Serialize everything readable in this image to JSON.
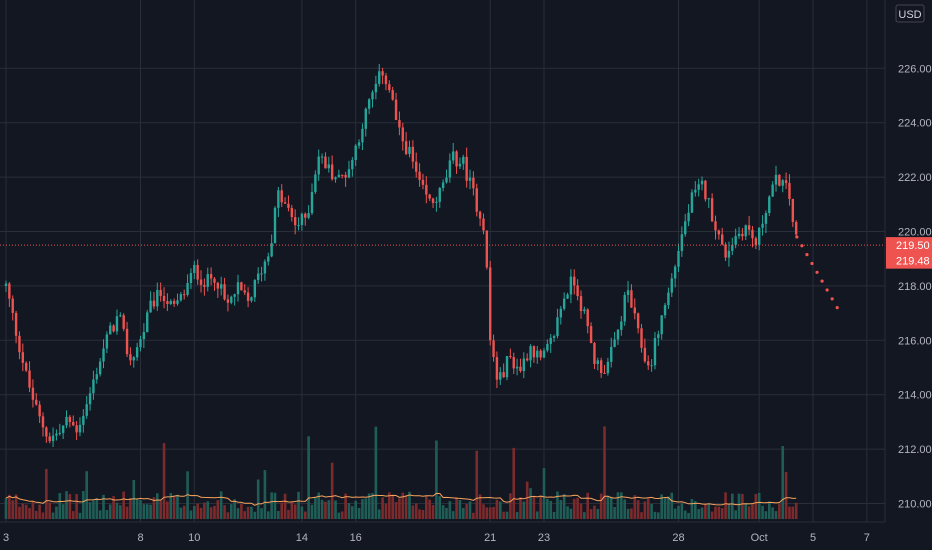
{
  "chart_data": {
    "type": "candlestick",
    "currency": "USD",
    "colors": {
      "background": "#131722",
      "grid": "#2a2e39",
      "up": "#26a69a",
      "down": "#ef5350",
      "volume_up": "#1f5e57",
      "volume_down": "#7d2a2c",
      "volume_ma": "#f7a35c",
      "axis_text": "#b2b5be",
      "last_price_line": "#ef5350"
    },
    "ylim": [
      209.0,
      228.0
    ],
    "y_ticks": [
      "210.00",
      "212.00",
      "214.00",
      "216.00",
      "218.00",
      "220.00",
      "222.00",
      "224.00",
      "226.00"
    ],
    "x_ticks": [
      {
        "label": "3",
        "day": 3
      },
      {
        "label": "8",
        "day": 8
      },
      {
        "label": "10",
        "day": 10
      },
      {
        "label": "14",
        "day": 14
      },
      {
        "label": "16",
        "day": 16
      },
      {
        "label": "21",
        "day": 21
      },
      {
        "label": "23",
        "day": 23
      },
      {
        "label": "28",
        "day": 28
      },
      {
        "label": "Oct",
        "day": 31
      },
      {
        "label": "5",
        "day": 33
      },
      {
        "label": "7",
        "day": 35
      }
    ],
    "price_labels": [
      {
        "text": "219.50",
        "value": 219.5
      },
      {
        "text": "219.48",
        "value": 219.48
      }
    ],
    "last_price": 219.5,
    "price_path": [
      {
        "t": 3.0,
        "p": 218.0
      },
      {
        "t": 3.4,
        "p": 216.2
      },
      {
        "t": 3.8,
        "p": 214.5
      },
      {
        "t": 4.2,
        "p": 213.2
      },
      {
        "t": 4.6,
        "p": 212.4
      },
      {
        "t": 5.0,
        "p": 212.6
      },
      {
        "t": 5.3,
        "p": 213.1
      },
      {
        "t": 5.6,
        "p": 212.7
      },
      {
        "t": 6.0,
        "p": 213.6
      },
      {
        "t": 6.4,
        "p": 215.0
      },
      {
        "t": 6.8,
        "p": 216.2
      },
      {
        "t": 7.2,
        "p": 216.9
      },
      {
        "t": 7.6,
        "p": 215.2
      },
      {
        "t": 8.0,
        "p": 216.0
      },
      {
        "t": 8.4,
        "p": 217.3
      },
      {
        "t": 8.8,
        "p": 217.8
      },
      {
        "t": 9.2,
        "p": 217.1
      },
      {
        "t": 9.6,
        "p": 217.7
      },
      {
        "t": 10.0,
        "p": 218.6
      },
      {
        "t": 10.4,
        "p": 218.1
      },
      {
        "t": 10.8,
        "p": 218.4
      },
      {
        "t": 11.2,
        "p": 217.2
      },
      {
        "t": 11.6,
        "p": 217.9
      },
      {
        "t": 12.0,
        "p": 217.4
      },
      {
        "t": 12.4,
        "p": 218.4
      },
      {
        "t": 12.8,
        "p": 219.3
      },
      {
        "t": 13.1,
        "p": 221.4
      },
      {
        "t": 13.4,
        "p": 220.9
      },
      {
        "t": 13.8,
        "p": 220.2
      },
      {
        "t": 14.2,
        "p": 220.6
      },
      {
        "t": 14.6,
        "p": 222.8
      },
      {
        "t": 15.0,
        "p": 222.3
      },
      {
        "t": 15.4,
        "p": 221.9
      },
      {
        "t": 15.8,
        "p": 222.4
      },
      {
        "t": 16.2,
        "p": 223.8
      },
      {
        "t": 16.6,
        "p": 225.0
      },
      {
        "t": 17.0,
        "p": 225.9
      },
      {
        "t": 17.3,
        "p": 225.1
      },
      {
        "t": 17.6,
        "p": 223.6
      },
      {
        "t": 18.0,
        "p": 222.9
      },
      {
        "t": 18.4,
        "p": 221.6
      },
      {
        "t": 18.8,
        "p": 221.0
      },
      {
        "t": 19.2,
        "p": 221.5
      },
      {
        "t": 19.6,
        "p": 222.7
      },
      {
        "t": 20.0,
        "p": 222.5
      },
      {
        "t": 20.4,
        "p": 221.3
      },
      {
        "t": 20.8,
        "p": 220.1
      },
      {
        "t": 21.0,
        "p": 216.0
      },
      {
        "t": 21.3,
        "p": 214.4
      },
      {
        "t": 21.7,
        "p": 215.4
      },
      {
        "t": 22.1,
        "p": 214.9
      },
      {
        "t": 22.5,
        "p": 215.8
      },
      {
        "t": 22.9,
        "p": 215.2
      },
      {
        "t": 23.3,
        "p": 216.0
      },
      {
        "t": 23.7,
        "p": 217.5
      },
      {
        "t": 24.1,
        "p": 218.3
      },
      {
        "t": 24.5,
        "p": 216.9
      },
      {
        "t": 24.9,
        "p": 215.2
      },
      {
        "t": 25.3,
        "p": 214.9
      },
      {
        "t": 25.7,
        "p": 216.1
      },
      {
        "t": 26.1,
        "p": 217.9
      },
      {
        "t": 26.5,
        "p": 216.2
      },
      {
        "t": 26.9,
        "p": 214.9
      },
      {
        "t": 27.3,
        "p": 216.6
      },
      {
        "t": 27.7,
        "p": 218.0
      },
      {
        "t": 28.1,
        "p": 219.8
      },
      {
        "t": 28.5,
        "p": 221.2
      },
      {
        "t": 28.9,
        "p": 221.7
      },
      {
        "t": 29.3,
        "p": 220.5
      },
      {
        "t": 29.7,
        "p": 219.1
      },
      {
        "t": 30.1,
        "p": 219.8
      },
      {
        "t": 30.5,
        "p": 220.2
      },
      {
        "t": 30.9,
        "p": 219.5
      },
      {
        "t": 31.3,
        "p": 221.1
      },
      {
        "t": 31.7,
        "p": 222.0
      },
      {
        "t": 32.1,
        "p": 221.4
      },
      {
        "t": 32.4,
        "p": 219.5
      }
    ],
    "projection": [
      {
        "t": 32.4,
        "p": 219.8
      },
      {
        "t": 33.9,
        "p": 217.2
      }
    ]
  }
}
